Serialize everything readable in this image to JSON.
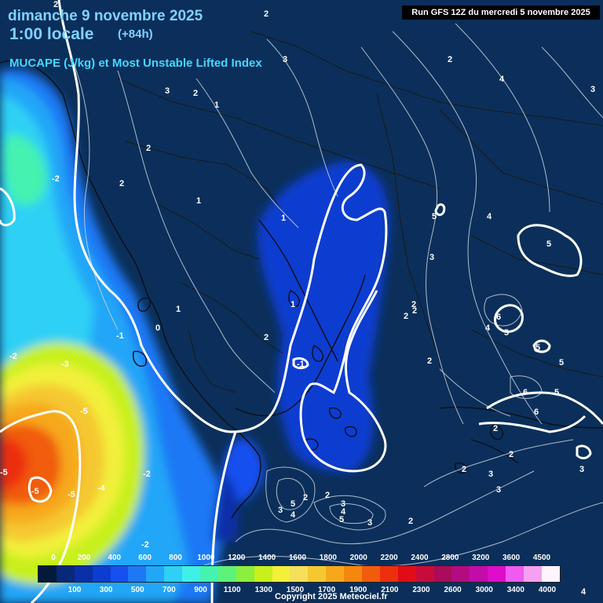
{
  "header": {
    "date_line": "dimanche 9 novembre 2025",
    "time_line": "1:00 locale",
    "offset_line": "(+84h)",
    "parameter_line": "MUCAPE (J/kg) et Most Unstable Lifted Index",
    "run_info": "Run GFS 12Z du mercredi 5 novembre 2025"
  },
  "legend": {
    "swatch_colors": [
      "#051a3a",
      "#08287a",
      "#0a2fa8",
      "#0c3dd0",
      "#1650f0",
      "#1e78f5",
      "#22a6f8",
      "#2ed0f5",
      "#3ff0e8",
      "#45f2b0",
      "#5ef27a",
      "#8cef3e",
      "#c8f01c",
      "#f2f03a",
      "#f4e05a",
      "#f5c830",
      "#f7a81a",
      "#f5860e",
      "#f15c0c",
      "#ec2f0c",
      "#e00d18",
      "#c80c3a",
      "#a80c5a",
      "#b40c80",
      "#c20ca8",
      "#e00ccc",
      "#f05af0",
      "#f7a0f2",
      "#fff4ff"
    ],
    "upper_labels": [
      "0",
      "200",
      "400",
      "600",
      "800",
      "1000",
      "1200",
      "1400",
      "1600",
      "1800",
      "2000",
      "2200",
      "2400",
      "2800",
      "3200",
      "3600",
      "4500"
    ],
    "lower_labels": [
      "100",
      "300",
      "500",
      "700",
      "900",
      "1100",
      "1300",
      "1500",
      "1700",
      "1900",
      "2100",
      "2300",
      "2600",
      "3000",
      "3400",
      "4000"
    ]
  },
  "lifted_index_labels": [
    "2",
    "2",
    "3",
    "3",
    "2",
    "2",
    "1",
    "2",
    "2",
    "2",
    "2",
    "1",
    "1",
    "2",
    "-2",
    "2",
    "4",
    "3",
    "5",
    "4",
    "5",
    "3",
    "2",
    "2",
    "6",
    "4",
    "5",
    "5",
    "5",
    "6",
    "6",
    "2",
    "2",
    "5",
    "3",
    "2",
    "3",
    "1",
    "1",
    "0",
    "-1",
    "-1",
    "-2",
    "-3",
    "-5",
    "-5",
    "-5",
    "-5",
    "-4",
    "-2",
    "-2",
    "2",
    "3",
    "5",
    "4",
    "3",
    "4",
    "5",
    "3",
    "2",
    "3",
    "4"
  ],
  "copyright": "Copyright 2025 Meteociel.fr"
}
